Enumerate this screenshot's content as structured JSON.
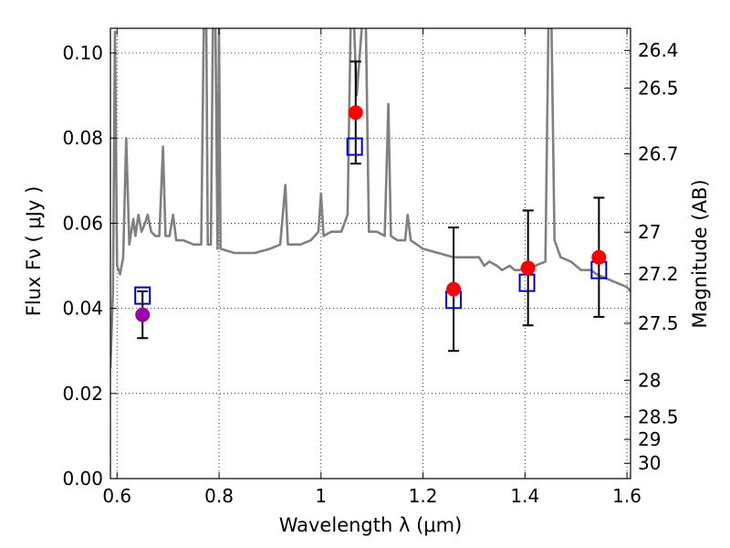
{
  "chart_data": {
    "type": "line",
    "xlabel": "Wavelength  λ (μm)",
    "ylabel": "Flux  Fν  ( μJy )",
    "y2label": "Magnitude (AB)",
    "xlim": [
      0.587,
      1.607
    ],
    "ylim": [
      0.0,
      0.1058
    ],
    "grid": true,
    "grid_style": "dotted",
    "x_ticks": [
      0.6,
      0.8,
      1.0,
      1.2,
      1.4,
      1.6
    ],
    "x_tick_labels": [
      "0.6",
      "0.8",
      "1",
      "1.2",
      "1.4",
      "1.6"
    ],
    "y_ticks": [
      0.0,
      0.02,
      0.04,
      0.06,
      0.08,
      0.1
    ],
    "y_tick_labels": [
      "0.00",
      "0.02",
      "0.04",
      "0.06",
      "0.08",
      "0.10"
    ],
    "y2_ticks": [
      {
        "label": "26.4",
        "flux": 0.1006
      },
      {
        "label": "26.5",
        "flux": 0.0917
      },
      {
        "label": "26.7",
        "flux": 0.0763
      },
      {
        "label": "27",
        "flux": 0.0579
      },
      {
        "label": "27.2",
        "flux": 0.0481
      },
      {
        "label": "27.5",
        "flux": 0.0365
      },
      {
        "label": "28",
        "flux": 0.0231
      },
      {
        "label": "28.5",
        "flux": 0.0145
      },
      {
        "label": "29",
        "flux": 0.0092
      },
      {
        "label": "30",
        "flux": 0.0036
      }
    ],
    "colors": {
      "spectrum": "#808080",
      "model_photometry": "#0000cc",
      "observed": "#ff0000",
      "observed_alt": "#9900aa",
      "errorbar": "#000000"
    },
    "series": [
      {
        "kind": "line",
        "points": [
          [
            0.587,
            0.026
          ],
          [
            0.592,
            0.044
          ],
          [
            0.596,
            0.105
          ],
          [
            0.6,
            0.05
          ],
          [
            0.606,
            0.048
          ],
          [
            0.612,
            0.052
          ],
          [
            0.618,
            0.08
          ],
          [
            0.624,
            0.055
          ],
          [
            0.632,
            0.061
          ],
          [
            0.636,
            0.057
          ],
          [
            0.642,
            0.062
          ],
          [
            0.648,
            0.058
          ],
          [
            0.655,
            0.06
          ],
          [
            0.66,
            0.062
          ],
          [
            0.667,
            0.058
          ],
          [
            0.675,
            0.057
          ],
          [
            0.683,
            0.057
          ],
          [
            0.69,
            0.078
          ],
          [
            0.695,
            0.057
          ],
          [
            0.703,
            0.057
          ],
          [
            0.71,
            0.062
          ],
          [
            0.716,
            0.056
          ],
          [
            0.73,
            0.056
          ],
          [
            0.75,
            0.055
          ],
          [
            0.765,
            0.055
          ],
          [
            0.77,
            0.106
          ],
          [
            0.775,
            0.106
          ],
          [
            0.778,
            0.055
          ],
          [
            0.784,
            0.055
          ],
          [
            0.788,
            0.106
          ],
          [
            0.793,
            0.106
          ],
          [
            0.797,
            0.054
          ],
          [
            0.8,
            0.106
          ],
          [
            0.803,
            0.054
          ],
          [
            0.83,
            0.053
          ],
          [
            0.85,
            0.053
          ],
          [
            0.87,
            0.053
          ],
          [
            0.9,
            0.054
          ],
          [
            0.92,
            0.055
          ],
          [
            0.93,
            0.069
          ],
          [
            0.935,
            0.055
          ],
          [
            0.96,
            0.055
          ],
          [
            0.98,
            0.056
          ],
          [
            0.995,
            0.058
          ],
          [
            1.0,
            0.067
          ],
          [
            1.005,
            0.057
          ],
          [
            1.02,
            0.058
          ],
          [
            1.04,
            0.058
          ],
          [
            1.052,
            0.062
          ],
          [
            1.058,
            0.106
          ],
          [
            1.065,
            0.106
          ],
          [
            1.07,
            0.09
          ],
          [
            1.08,
            0.106
          ],
          [
            1.088,
            0.106
          ],
          [
            1.094,
            0.058
          ],
          [
            1.11,
            0.058
          ],
          [
            1.125,
            0.057
          ],
          [
            1.132,
            0.088
          ],
          [
            1.137,
            0.057
          ],
          [
            1.15,
            0.056
          ],
          [
            1.165,
            0.056
          ],
          [
            1.17,
            0.062
          ],
          [
            1.176,
            0.056
          ],
          [
            1.2,
            0.054
          ],
          [
            1.23,
            0.053
          ],
          [
            1.26,
            0.052
          ],
          [
            1.29,
            0.052
          ],
          [
            1.31,
            0.052
          ],
          [
            1.32,
            0.05
          ],
          [
            1.33,
            0.051
          ],
          [
            1.345,
            0.05
          ],
          [
            1.355,
            0.049
          ],
          [
            1.37,
            0.05
          ],
          [
            1.38,
            0.049
          ],
          [
            1.39,
            0.049
          ],
          [
            1.4,
            0.05
          ],
          [
            1.42,
            0.05
          ],
          [
            1.44,
            0.051
          ],
          [
            1.446,
            0.106
          ],
          [
            1.452,
            0.106
          ],
          [
            1.458,
            0.056
          ],
          [
            1.47,
            0.052
          ],
          [
            1.49,
            0.051
          ],
          [
            1.51,
            0.049
          ],
          [
            1.53,
            0.049
          ],
          [
            1.54,
            0.048
          ],
          [
            1.56,
            0.047
          ],
          [
            1.58,
            0.046
          ],
          [
            1.6,
            0.045
          ],
          [
            1.607,
            0.044
          ]
        ]
      },
      {
        "kind": "model_squares",
        "points": [
          [
            0.65,
            0.043
          ],
          [
            1.066,
            0.078
          ],
          [
            1.26,
            0.042
          ],
          [
            1.404,
            0.046
          ],
          [
            1.545,
            0.049
          ]
        ]
      },
      {
        "kind": "observed_points",
        "points": [
          {
            "x": 0.65,
            "y": 0.0385,
            "yerr_low": 0.033,
            "yerr_high": 0.044,
            "style": "observed_alt"
          },
          {
            "x": 1.068,
            "y": 0.086,
            "yerr_low": 0.074,
            "yerr_high": 0.098,
            "style": "observed"
          },
          {
            "x": 1.26,
            "y": 0.0445,
            "yerr_low": 0.03,
            "yerr_high": 0.059,
            "style": "observed"
          },
          {
            "x": 1.406,
            "y": 0.0495,
            "yerr_low": 0.036,
            "yerr_high": 0.063,
            "style": "observed"
          },
          {
            "x": 1.545,
            "y": 0.052,
            "yerr_low": 0.038,
            "yerr_high": 0.066,
            "style": "observed"
          }
        ]
      }
    ]
  }
}
